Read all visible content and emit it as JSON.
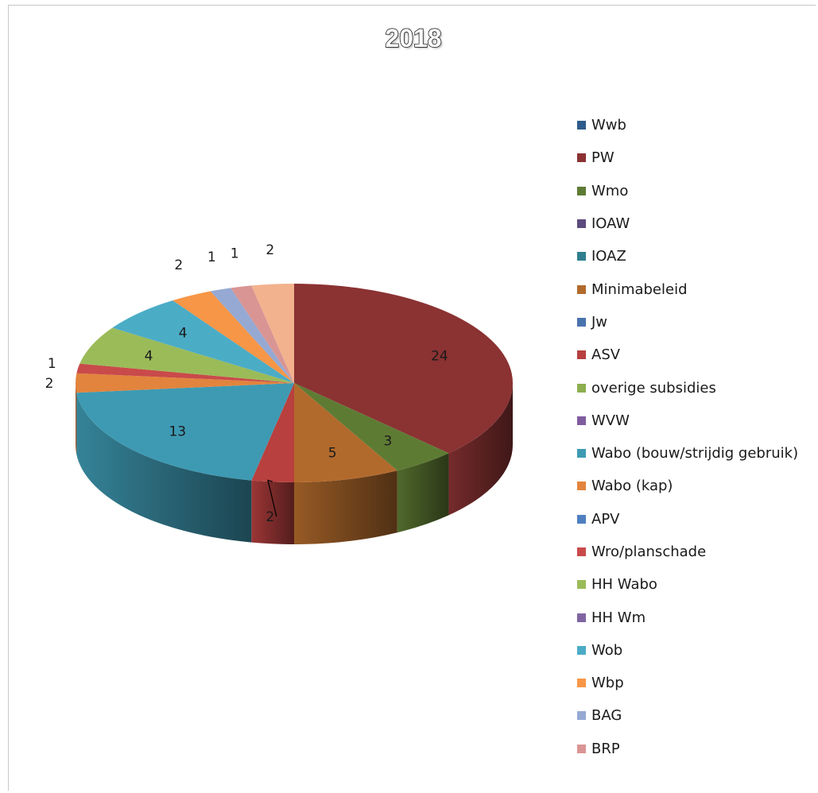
{
  "chart_data": {
    "type": "pie",
    "title": "2018",
    "legend_position": "right",
    "style": "3d",
    "slices": [
      {
        "label": "Wwb",
        "value": 0,
        "color": "#2E5C8A"
      },
      {
        "label": "PW",
        "value": 24,
        "color": "#8B3233"
      },
      {
        "label": "Wmo",
        "value": 3,
        "color": "#5E7B34"
      },
      {
        "label": "IOAW",
        "value": 0,
        "color": "#5D4A7E"
      },
      {
        "label": "IOAZ",
        "value": 0,
        "color": "#2F7F8F"
      },
      {
        "label": "Minimabeleid",
        "value": 5,
        "color": "#B26A2C"
      },
      {
        "label": "Jw",
        "value": 0,
        "color": "#4A73AE"
      },
      {
        "label": "ASV",
        "value": 2,
        "color": "#B8403F"
      },
      {
        "label": "overige subsidies",
        "value": 0,
        "color": "#8DAF4F"
      },
      {
        "label": "WVW",
        "value": 0,
        "color": "#7F5C9F"
      },
      {
        "label": "Wabo (bouw/strijdig gebruik)",
        "value": 13,
        "color": "#3E9AB3"
      },
      {
        "label": "Wabo (kap)",
        "value": 2,
        "color": "#E2843D"
      },
      {
        "label": "APV",
        "value": 0,
        "color": "#4F7FC0"
      },
      {
        "label": "Wro/planschade",
        "value": 1,
        "color": "#C94A4A"
      },
      {
        "label": "HH Wabo",
        "value": 4,
        "color": "#9BBB59"
      },
      {
        "label": "HH Wm",
        "value": 0,
        "color": "#8064A2"
      },
      {
        "label": "Wob",
        "value": 4,
        "color": "#4BACC6"
      },
      {
        "label": "Wbp",
        "value": 2,
        "color": "#F79646"
      },
      {
        "label": "BAG",
        "value": 1,
        "color": "#95A9D3"
      },
      {
        "label": "BRP",
        "value": 1,
        "color": "#D99594"
      },
      {
        "label": "",
        "value": 2,
        "color": "#F2B28E"
      }
    ]
  }
}
